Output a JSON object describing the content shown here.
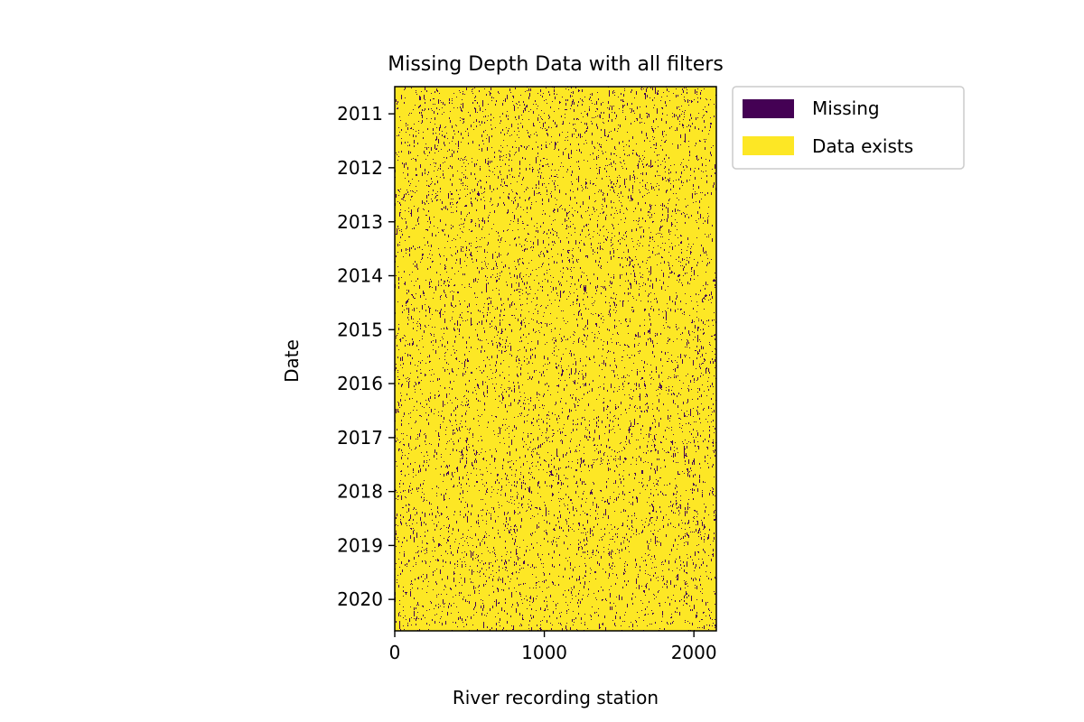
{
  "chart_data": {
    "type": "heatmap",
    "title": "Missing Depth Data with all filters",
    "xlabel": "River recording station",
    "ylabel": "Date",
    "xlim": [
      0,
      2150
    ],
    "ylim": [
      "2010-07-01",
      "2020-08-01"
    ],
    "x_ticks": [
      0,
      1000,
      2000
    ],
    "x_tick_labels": [
      "0",
      "1000",
      "2000"
    ],
    "y_ticks": [
      "2011-01-01",
      "2012-01-01",
      "2013-01-01",
      "2014-01-01",
      "2015-01-01",
      "2016-01-01",
      "2017-01-01",
      "2018-01-01",
      "2019-01-01",
      "2020-01-01"
    ],
    "y_tick_labels": [
      "2011",
      "2012",
      "2013",
      "2014",
      "2015",
      "2016",
      "2017",
      "2018",
      "2019",
      "2020"
    ],
    "categories": [
      "Missing",
      "Data exists"
    ],
    "colors": {
      "missing": "#440154",
      "exists": "#fde725"
    },
    "missing_fraction": 0.04,
    "grid": false,
    "legend_position": "outside upper right"
  }
}
